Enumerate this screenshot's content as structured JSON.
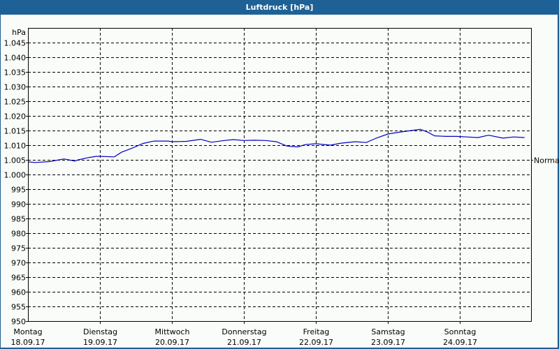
{
  "window": {
    "title": "Luftdruck [hPa]"
  },
  "chart_data": {
    "type": "line",
    "title": "Luftdruck [hPa]",
    "xlabel": "",
    "ylabel": "hPa",
    "ylim": [
      950,
      1050
    ],
    "grid": true,
    "y_ticks": [
      "950",
      "955",
      "960",
      "965",
      "970",
      "975",
      "980",
      "985",
      "990",
      "995",
      "1.000",
      "1.005",
      "1.010",
      "1.015",
      "1.020",
      "1.025",
      "1.030",
      "1.035",
      "1.040",
      "1.045"
    ],
    "x_ticks": [
      {
        "day": "Montag",
        "date": "18.09.17"
      },
      {
        "day": "Dienstag",
        "date": "19.09.17"
      },
      {
        "day": "Mittwoch",
        "date": "20.09.17"
      },
      {
        "day": "Donnerstag",
        "date": "21.09.17"
      },
      {
        "day": "Freitag",
        "date": "22.09.17"
      },
      {
        "day": "Samstag",
        "date": "23.09.17"
      },
      {
        "day": "Sonntag",
        "date": "24.09.17"
      }
    ],
    "annotation": {
      "label": "Normal",
      "value": 1005
    },
    "series": [
      {
        "name": "Luftdruck",
        "color": "#0000c0",
        "x_days": [
          0.0,
          0.1,
          0.3,
          0.5,
          0.65,
          0.7,
          0.85,
          0.95,
          1.0,
          1.2,
          1.3,
          1.45,
          1.6,
          1.75,
          1.95,
          2.0,
          2.2,
          2.4,
          2.55,
          2.7,
          2.85,
          3.0,
          3.15,
          3.3,
          3.45,
          3.6,
          3.75,
          3.85,
          4.0,
          4.2,
          4.35,
          4.55,
          4.7,
          4.85,
          5.0,
          5.15,
          5.3,
          5.45,
          5.55,
          5.65,
          5.8,
          5.95,
          6.1,
          6.25,
          6.4,
          6.6,
          6.75,
          6.9
        ],
        "values": [
          1004.3,
          1004.1,
          1004.4,
          1005.3,
          1004.6,
          1005.0,
          1005.8,
          1006.2,
          1006.2,
          1006.0,
          1007.6,
          1009.0,
          1010.6,
          1011.4,
          1011.4,
          1011.2,
          1011.3,
          1012.0,
          1011.0,
          1011.5,
          1011.9,
          1011.6,
          1011.7,
          1011.6,
          1011.2,
          1009.7,
          1009.4,
          1010.2,
          1010.5,
          1010.0,
          1010.7,
          1011.2,
          1010.9,
          1012.5,
          1013.8,
          1014.4,
          1014.9,
          1015.4,
          1014.5,
          1013.2,
          1013.0,
          1013.0,
          1012.8,
          1012.6,
          1013.4,
          1012.4,
          1012.8,
          1012.6
        ]
      }
    ]
  }
}
